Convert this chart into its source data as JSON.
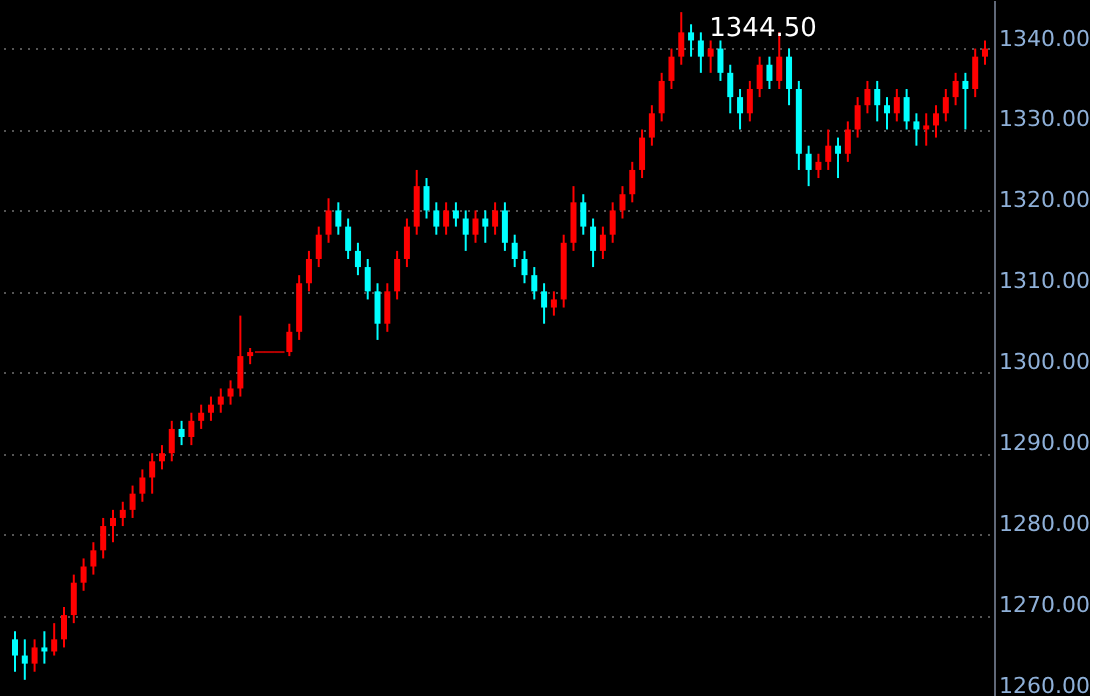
{
  "chart_data": {
    "type": "candlestick",
    "categories": [
      null,
      null,
      null,
      null,
      null,
      null,
      null,
      null,
      null,
      null,
      null,
      null,
      null,
      null,
      null,
      null,
      null,
      null,
      null,
      null,
      null,
      null,
      null,
      null,
      null,
      null,
      null,
      null,
      null,
      null,
      null,
      null,
      null,
      null,
      null,
      null,
      null,
      null,
      null,
      null,
      null,
      null,
      null,
      null,
      null,
      null,
      null,
      null,
      null,
      null,
      null,
      null,
      null,
      null,
      null,
      null,
      null,
      null,
      null,
      null,
      null,
      null,
      null,
      null,
      null,
      null,
      null,
      null,
      null,
      null,
      null,
      null,
      null,
      null,
      null,
      null,
      null,
      null,
      null,
      null,
      null,
      null,
      null,
      null,
      null,
      null,
      null,
      null,
      null,
      null,
      null,
      null,
      null,
      null,
      null,
      null,
      null,
      null,
      null,
      null
    ],
    "ohlc": [
      [
        1267,
        1268,
        1263,
        1265
      ],
      [
        1265,
        1267,
        1262,
        1264
      ],
      [
        1264,
        1267,
        1263,
        1266
      ],
      [
        1266,
        1268,
        1264,
        1265.5
      ],
      [
        1265.5,
        1269,
        1265,
        1267
      ],
      [
        1267,
        1271,
        1266,
        1270
      ],
      [
        1270,
        1275,
        1269,
        1274
      ],
      [
        1274,
        1277,
        1273,
        1276
      ],
      [
        1276,
        1279,
        1275,
        1278
      ],
      [
        1278,
        1282,
        1277,
        1281
      ],
      [
        1281,
        1283,
        1279,
        1282
      ],
      [
        1282,
        1284,
        1281,
        1283
      ],
      [
        1283,
        1286,
        1282,
        1285
      ],
      [
        1285,
        1288,
        1284,
        1287
      ],
      [
        1287,
        1290,
        1285,
        1289
      ],
      [
        1289,
        1291,
        1288,
        1290
      ],
      [
        1290,
        1294,
        1289,
        1293
      ],
      [
        1293,
        1294,
        1291,
        1292
      ],
      [
        1292,
        1295,
        1291,
        1294
      ],
      [
        1294,
        1296,
        1293,
        1295
      ],
      [
        1295,
        1297,
        1294,
        1296
      ],
      [
        1296,
        1298,
        1295,
        1297
      ],
      [
        1297,
        1299,
        1296,
        1298
      ],
      [
        1298,
        1307,
        1297,
        1302
      ],
      [
        1302,
        1303,
        1301,
        1302.5
      ],
      [
        1302.5,
        1302.5,
        1302.5,
        1302.5
      ],
      [
        1302.5,
        1302.5,
        1302.5,
        1302.5
      ],
      [
        1302.5,
        1302.5,
        1302.5,
        1302.5
      ],
      [
        1302.5,
        1306,
        1302,
        1305
      ],
      [
        1305,
        1312,
        1304,
        1311
      ],
      [
        1311,
        1315,
        1310,
        1314
      ],
      [
        1314,
        1318,
        1313,
        1317
      ],
      [
        1317,
        1321.5,
        1316,
        1320
      ],
      [
        1320,
        1321,
        1317,
        1318
      ],
      [
        1318,
        1319,
        1314,
        1315
      ],
      [
        1315,
        1316,
        1312,
        1313
      ],
      [
        1313,
        1314,
        1309,
        1310
      ],
      [
        1310,
        1311,
        1304,
        1306
      ],
      [
        1306,
        1311,
        1305,
        1310
      ],
      [
        1310,
        1315,
        1309,
        1314
      ],
      [
        1314,
        1319,
        1313,
        1318
      ],
      [
        1318,
        1325,
        1317,
        1323
      ],
      [
        1323,
        1324,
        1319,
        1320
      ],
      [
        1320,
        1321,
        1317,
        1318
      ],
      [
        1318,
        1321,
        1317,
        1320
      ],
      [
        1320,
        1321,
        1318,
        1319
      ],
      [
        1319,
        1320,
        1315,
        1317
      ],
      [
        1317,
        1320,
        1316,
        1319
      ],
      [
        1319,
        1320,
        1316,
        1318
      ],
      [
        1318,
        1321,
        1317,
        1320
      ],
      [
        1320,
        1321,
        1315,
        1316
      ],
      [
        1316,
        1317,
        1313,
        1314
      ],
      [
        1314,
        1315,
        1311,
        1312
      ],
      [
        1312,
        1313,
        1309,
        1310
      ],
      [
        1310,
        1311,
        1306,
        1308
      ],
      [
        1308,
        1310,
        1307,
        1309
      ],
      [
        1309,
        1317,
        1308,
        1316
      ],
      [
        1316,
        1323,
        1315,
        1321
      ],
      [
        1321,
        1322,
        1317,
        1318
      ],
      [
        1318,
        1319,
        1313,
        1315
      ],
      [
        1315,
        1318,
        1314,
        1317
      ],
      [
        1317,
        1321,
        1316,
        1320
      ],
      [
        1320,
        1323,
        1319,
        1322
      ],
      [
        1322,
        1326,
        1321,
        1325
      ],
      [
        1325,
        1330,
        1324,
        1329
      ],
      [
        1329,
        1333,
        1328,
        1332
      ],
      [
        1332,
        1337,
        1331,
        1336
      ],
      [
        1336,
        1340,
        1335,
        1339
      ],
      [
        1339,
        1344.5,
        1338,
        1342
      ],
      [
        1342,
        1343,
        1339,
        1341
      ],
      [
        1341,
        1342,
        1337,
        1339
      ],
      [
        1339,
        1341,
        1337,
        1340
      ],
      [
        1340,
        1341,
        1336,
        1337
      ],
      [
        1337,
        1338,
        1332,
        1334
      ],
      [
        1334,
        1335,
        1330,
        1332
      ],
      [
        1332,
        1336,
        1331,
        1335
      ],
      [
        1335,
        1339,
        1334,
        1338
      ],
      [
        1338,
        1339,
        1335,
        1336
      ],
      [
        1336,
        1342,
        1335,
        1339
      ],
      [
        1339,
        1340,
        1333,
        1335
      ],
      [
        1335,
        1336,
        1325,
        1327
      ],
      [
        1327,
        1328,
        1323,
        1325
      ],
      [
        1325,
        1327,
        1324,
        1326
      ],
      [
        1326,
        1330,
        1325,
        1328
      ],
      [
        1328,
        1329,
        1324,
        1327
      ],
      [
        1327,
        1331,
        1326,
        1330
      ],
      [
        1330,
        1334,
        1329,
        1333
      ],
      [
        1333,
        1336,
        1332,
        1335
      ],
      [
        1335,
        1336,
        1331,
        1333
      ],
      [
        1333,
        1334,
        1330,
        1332
      ],
      [
        1332,
        1335,
        1331,
        1334
      ],
      [
        1334,
        1335,
        1330,
        1331
      ],
      [
        1331,
        1332,
        1328,
        1330
      ],
      [
        1330,
        1332,
        1328,
        1330.5
      ],
      [
        1330.5,
        1333,
        1329,
        1332
      ],
      [
        1332,
        1335,
        1331,
        1334
      ],
      [
        1334,
        1337,
        1333,
        1336
      ],
      [
        1336,
        1337,
        1330,
        1335
      ],
      [
        1335,
        1340,
        1334,
        1339
      ],
      [
        1339,
        1341,
        1338,
        1340
      ]
    ],
    "colors": [
      "#00ffff",
      "#00ffff",
      "#ff0000",
      "#00ffff",
      "#ff0000",
      "#ff0000",
      "#ff0000",
      "#ff0000",
      "#ff0000",
      "#ff0000",
      "#ff0000",
      "#ff0000",
      "#ff0000",
      "#ff0000",
      "#ff0000",
      "#ff0000",
      "#ff0000",
      "#00ffff",
      "#ff0000",
      "#ff0000",
      "#ff0000",
      "#ff0000",
      "#ff0000",
      "#ff0000",
      "#ff0000",
      "#ff0000",
      "#ff0000",
      "#ff0000",
      "#ff0000",
      "#ff0000",
      "#ff0000",
      "#ff0000",
      "#ff0000",
      "#00ffff",
      "#00ffff",
      "#00ffff",
      "#00ffff",
      "#00ffff",
      "#ff0000",
      "#ff0000",
      "#ff0000",
      "#ff0000",
      "#00ffff",
      "#00ffff",
      "#ff0000",
      "#00ffff",
      "#00ffff",
      "#ff0000",
      "#00ffff",
      "#ff0000",
      "#00ffff",
      "#00ffff",
      "#00ffff",
      "#00ffff",
      "#00ffff",
      "#ff0000",
      "#ff0000",
      "#ff0000",
      "#00ffff",
      "#00ffff",
      "#ff0000",
      "#ff0000",
      "#ff0000",
      "#ff0000",
      "#ff0000",
      "#ff0000",
      "#ff0000",
      "#ff0000",
      "#ff0000",
      "#00ffff",
      "#00ffff",
      "#ff0000",
      "#00ffff",
      "#00ffff",
      "#00ffff",
      "#ff0000",
      "#ff0000",
      "#00ffff",
      "#ff0000",
      "#00ffff",
      "#00ffff",
      "#00ffff",
      "#ff0000",
      "#ff0000",
      "#00ffff",
      "#ff0000",
      "#ff0000",
      "#ff0000",
      "#00ffff",
      "#00ffff",
      "#ff0000",
      "#00ffff",
      "#00ffff",
      "#ff0000",
      "#ff0000",
      "#ff0000",
      "#ff0000",
      "#00ffff",
      "#ff0000",
      "#ff0000"
    ],
    "ylim": [
      1260,
      1346
    ],
    "yticks": [
      {
        "value": 1260,
        "label": "1260.00"
      },
      {
        "value": 1270,
        "label": "1270.00"
      },
      {
        "value": 1280,
        "label": "1280.00"
      },
      {
        "value": 1290,
        "label": "1290.00"
      },
      {
        "value": 1300,
        "label": "1300.00"
      },
      {
        "value": 1310,
        "label": "1310.00"
      },
      {
        "value": 1320,
        "label": "1320.00"
      },
      {
        "value": 1330,
        "label": "1330.00"
      },
      {
        "value": 1340,
        "label": "1340.00"
      }
    ],
    "grid": "y",
    "annotations": [
      "1344.50"
    ]
  }
}
